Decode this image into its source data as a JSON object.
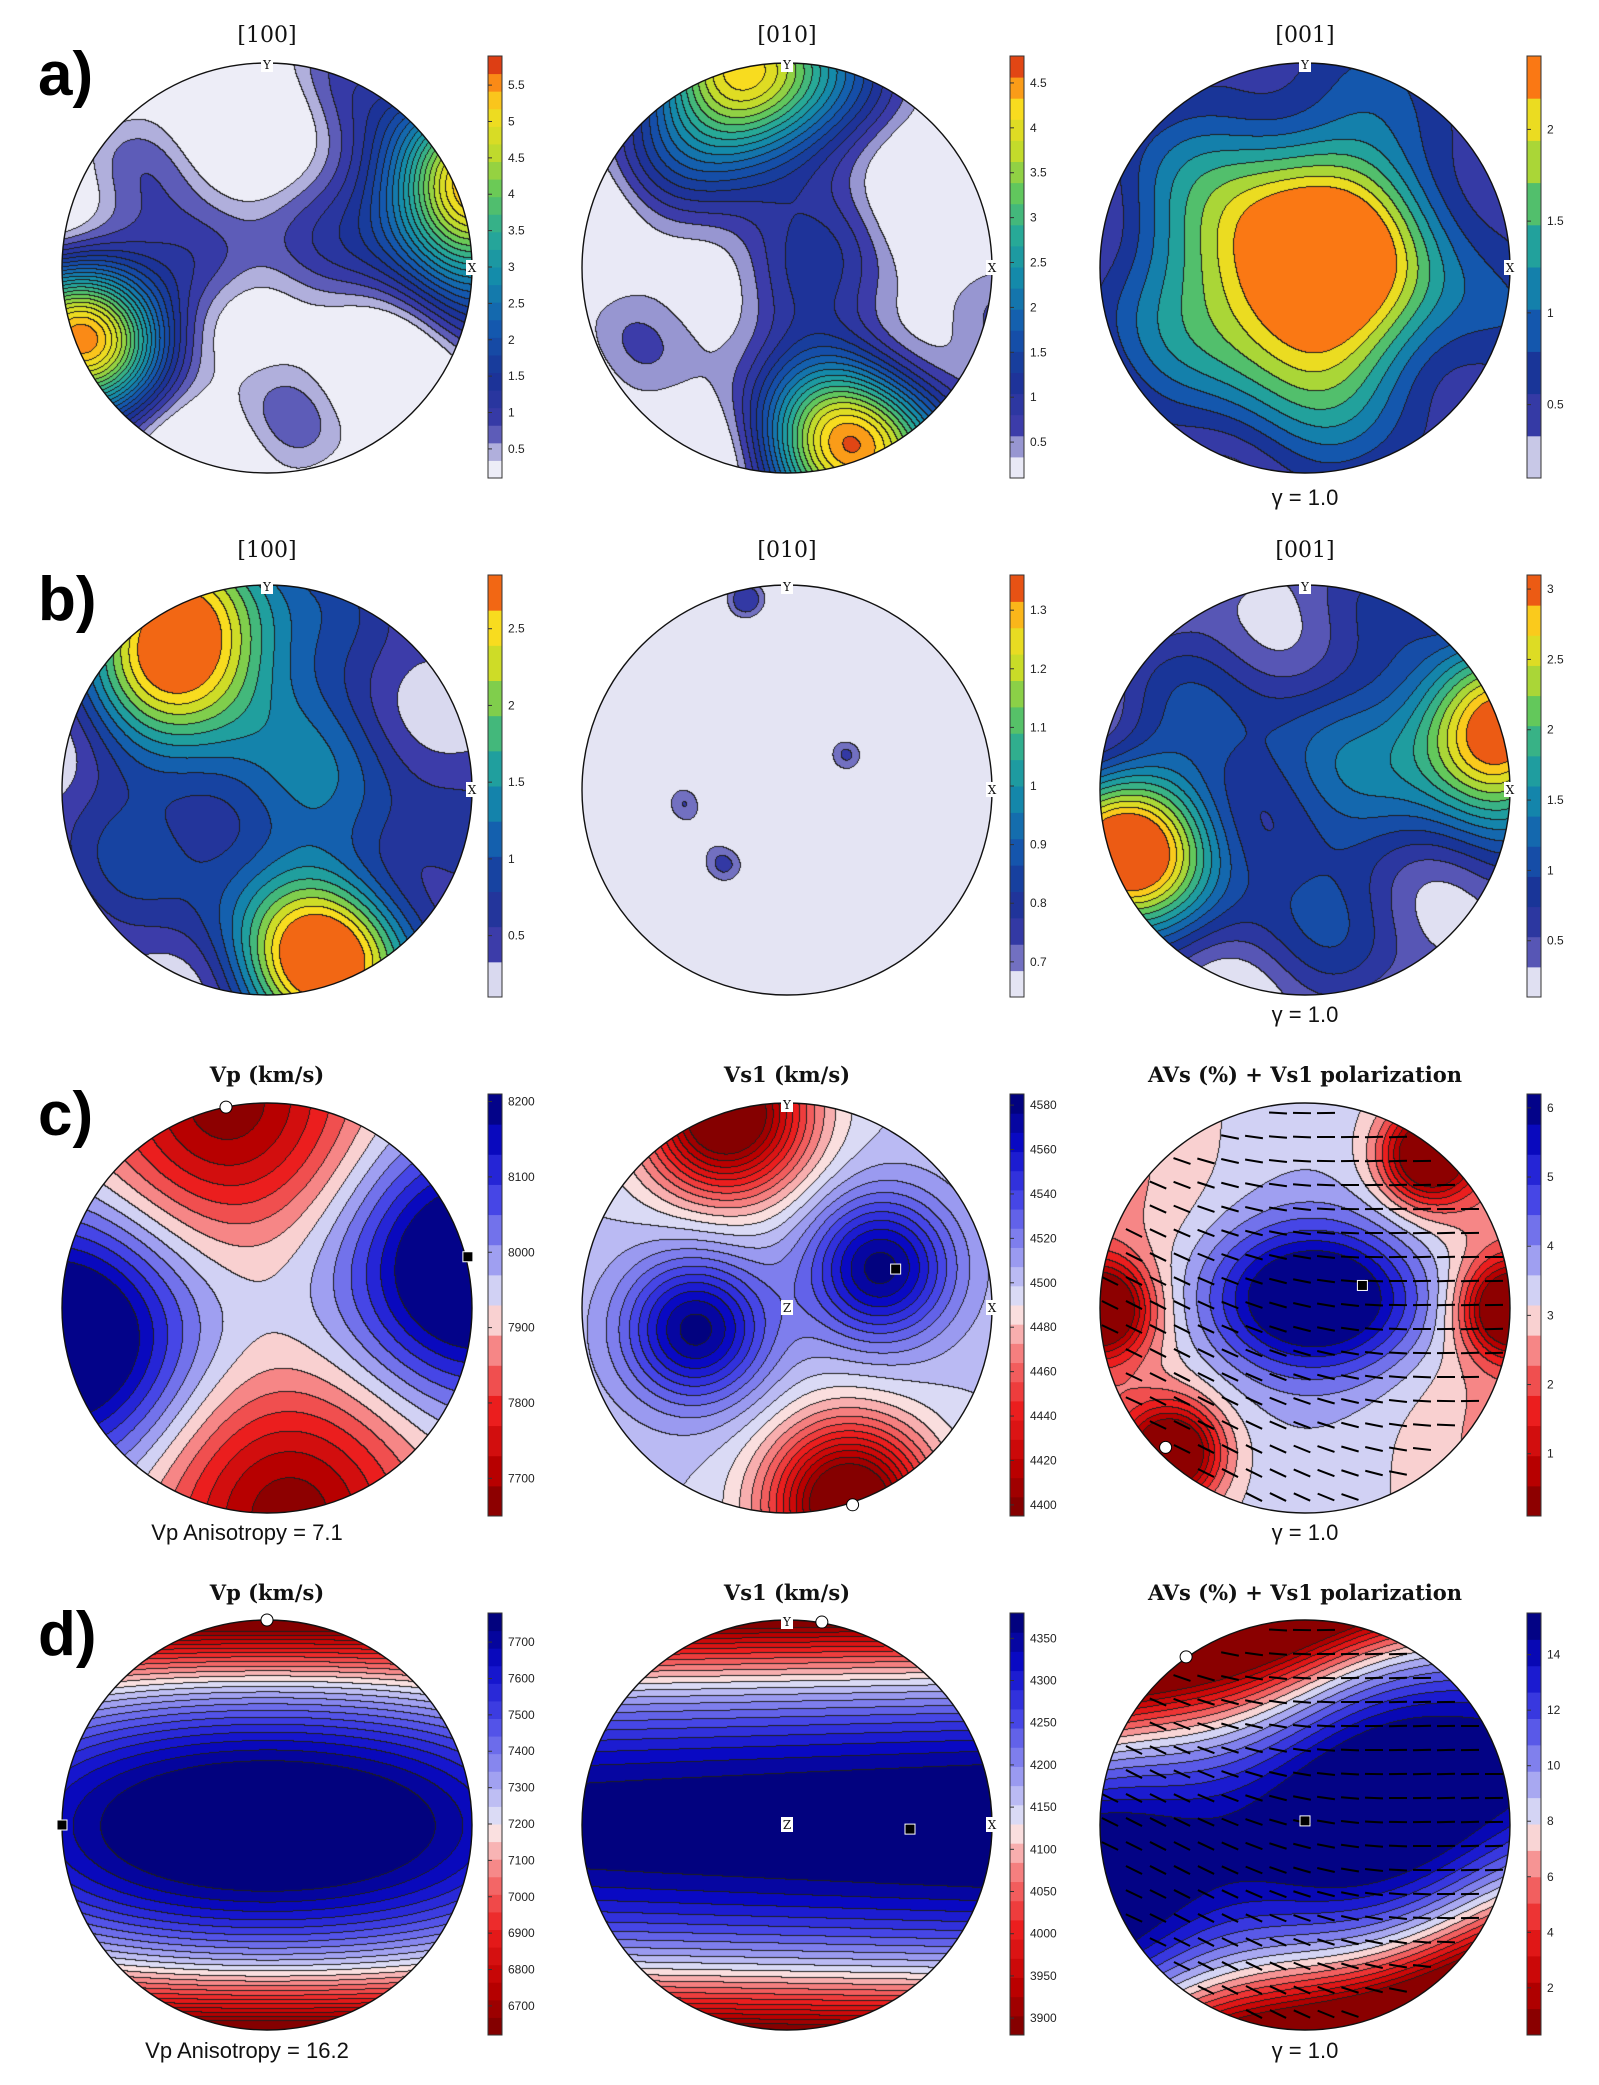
{
  "rows": [
    {
      "letter": "a)",
      "kind": "pole",
      "plots": [
        {
          "title": "[100]",
          "ticks": [
            "0.5",
            "1",
            "1.5",
            "2",
            "2.5",
            "3",
            "3.5",
            "4",
            "4.5",
            "5",
            "5.5"
          ],
          "range": [
            0.1,
            5.9
          ],
          "scale": "parula",
          "blobs": [
            {
              "u": 0.96,
              "v": 0.38,
              "r": 0.45,
              "a": 5.6
            },
            {
              "u": -0.95,
              "v": -0.35,
              "r": 0.4,
              "a": 5.2
            },
            {
              "u": -0.3,
              "v": 0.0,
              "r": 0.3,
              "a": 1.3
            }
          ],
          "axis_marks": [
            {
              "t": "Y",
              "pos": "top"
            },
            {
              "t": "X",
              "pos": "right"
            }
          ],
          "caption": "",
          "markers": []
        },
        {
          "title": "[010]",
          "ticks": [
            "0.5",
            "1",
            "1.5",
            "2",
            "2.5",
            "3",
            "3.5",
            "4",
            "4.5"
          ],
          "range": [
            0.1,
            4.8
          ],
          "scale": "parula",
          "blobs": [
            {
              "u": -0.2,
              "v": 0.92,
              "r": 0.45,
              "a": 4.5
            },
            {
              "u": 0.35,
              "v": -0.88,
              "r": 0.45,
              "a": 4.3
            },
            {
              "u": -0.05,
              "v": -0.1,
              "r": 0.35,
              "a": 1.0
            }
          ],
          "axis_marks": [
            {
              "t": "Y",
              "pos": "top"
            },
            {
              "t": "X",
              "pos": "right"
            }
          ],
          "caption": "",
          "markers": []
        },
        {
          "title": "[001]",
          "ticks": [
            "0.5",
            "1",
            "1.5",
            "2"
          ],
          "range": [
            0.1,
            2.4
          ],
          "scale": "parula",
          "blobs": [
            {
              "u": 0.0,
              "v": 0.0,
              "r": 0.6,
              "a": 2.2
            },
            {
              "u": 0.0,
              "v": 0.0,
              "r": 1.2,
              "a": 0.8
            }
          ],
          "axis_marks": [
            {
              "t": "Y",
              "pos": "top"
            },
            {
              "t": "X",
              "pos": "right"
            }
          ],
          "caption": "γ = 1.0",
          "markers": []
        }
      ]
    },
    {
      "letter": "b)",
      "kind": "pole",
      "plots": [
        {
          "title": "[100]",
          "ticks": [
            "0.5",
            "1",
            "1.5",
            "2",
            "2.5"
          ],
          "range": [
            0.1,
            2.85
          ],
          "scale": "parula",
          "blobs": [
            {
              "u": -0.4,
              "v": 0.78,
              "r": 0.45,
              "a": 2.7
            },
            {
              "u": 0.3,
              "v": -0.85,
              "r": 0.4,
              "a": 2.6
            },
            {
              "u": 0.0,
              "v": 0.0,
              "r": 1.0,
              "a": 1.0
            }
          ],
          "axis_marks": [
            {
              "t": "Y",
              "pos": "top"
            },
            {
              "t": "X",
              "pos": "right"
            }
          ],
          "caption": "",
          "markers": []
        },
        {
          "title": "[010]",
          "ticks": [
            "0.7",
            "0.8",
            "0.9",
            "1",
            "1.1",
            "1.2",
            "1.3"
          ],
          "range": [
            0.64,
            1.36
          ],
          "scale": "parula",
          "blobs": [
            {
              "u": -0.2,
              "v": 0.92,
              "r": 0.2,
              "a": 0.5
            },
            {
              "u": 0.3,
              "v": 0.2,
              "r": 0.18,
              "a": 0.45
            },
            {
              "u": -0.3,
              "v": -0.35,
              "r": 0.2,
              "a": 0.45
            },
            {
              "u": -0.5,
              "v": -0.05,
              "r": 0.18,
              "a": 0.42
            },
            {
              "u": 0.25,
              "v": -0.55,
              "r": 0.18,
              "a": 0.3
            },
            {
              "u": 0.4,
              "v": 0.4,
              "r": 0.3,
              "a": -0.2
            }
          ],
          "axis_marks": [
            {
              "t": "Y",
              "pos": "top"
            },
            {
              "t": "X",
              "pos": "right"
            }
          ],
          "caption": "",
          "markers": []
        },
        {
          "title": "[001]",
          "ticks": [
            "0.5",
            "1",
            "1.5",
            "2",
            "2.5",
            "3"
          ],
          "range": [
            0.1,
            3.1
          ],
          "scale": "parula",
          "blobs": [
            {
              "u": 0.92,
              "v": 0.3,
              "r": 0.4,
              "a": 3.0
            },
            {
              "u": -0.92,
              "v": -0.3,
              "r": 0.4,
              "a": 2.9
            },
            {
              "u": 0.0,
              "v": 0.0,
              "r": 1.0,
              "a": 1.0
            }
          ],
          "axis_marks": [
            {
              "t": "Y",
              "pos": "top"
            },
            {
              "t": "X",
              "pos": "right"
            }
          ],
          "caption": "γ = 1.0",
          "markers": []
        }
      ]
    },
    {
      "letter": "c)",
      "kind": "seismic",
      "plots": [
        {
          "title": "Vp (km/s)",
          "ticks": [
            "7700",
            "7800",
            "7900",
            "8000",
            "8100",
            "8200"
          ],
          "range": [
            7650,
            8210
          ],
          "scale": "redblue",
          "field": "vp_c",
          "axis_marks": [],
          "caption": "Vp Anisotropy = 7.1",
          "markers": [
            {
              "type": "max",
              "u": 0.98,
              "v": 0.25
            },
            {
              "type": "min",
              "u": -0.2,
              "v": 0.98
            }
          ],
          "lines": false
        },
        {
          "title": "Vs1 (km/s)",
          "ticks": [
            "4400",
            "4420",
            "4440",
            "4460",
            "4480",
            "4500",
            "4520",
            "4540",
            "4560",
            "4580"
          ],
          "range": [
            4395,
            4585
          ],
          "scale": "redblue",
          "field": "vs_c",
          "axis_marks": [
            {
              "t": "Y",
              "pos": "top"
            },
            {
              "t": "X",
              "pos": "right"
            },
            {
              "t": "Z",
              "pos": "center"
            }
          ],
          "caption": "",
          "markers": [
            {
              "type": "max",
              "u": 0.53,
              "v": 0.19
            },
            {
              "type": "min",
              "u": 0.32,
              "v": -0.96
            }
          ],
          "lines": false
        },
        {
          "title": "AVs (%) + Vs1 polarization",
          "ticks": [
            "1",
            "2",
            "3",
            "4",
            "5",
            "6"
          ],
          "range": [
            0.1,
            6.2
          ],
          "scale": "redblue",
          "field": "av_c",
          "axis_marks": [],
          "caption": "γ = 1.0",
          "markers": [
            {
              "type": "max",
              "u": 0.28,
              "v": 0.11
            },
            {
              "type": "min",
              "u": -0.68,
              "v": -0.68
            }
          ],
          "lines": true
        }
      ]
    },
    {
      "letter": "d)",
      "kind": "seismic",
      "plots": [
        {
          "title": "Vp (km/s)",
          "ticks": [
            "6700",
            "6800",
            "6900",
            "7000",
            "7100",
            "7200",
            "7300",
            "7400",
            "7500",
            "7600",
            "7700"
          ],
          "range": [
            6620,
            7780
          ],
          "scale": "redblue",
          "field": "vp_d",
          "axis_marks": [],
          "caption": "Vp Anisotropy = 16.2",
          "markers": [
            {
              "type": "max",
              "u": -1.0,
              "v": 0.0
            },
            {
              "type": "min",
              "u": 0.0,
              "v": 1.0
            }
          ],
          "lines": false
        },
        {
          "title": "Vs1 (km/s)",
          "ticks": [
            "3900",
            "3950",
            "4000",
            "4050",
            "4100",
            "4150",
            "4200",
            "4250",
            "4300",
            "4350"
          ],
          "range": [
            3880,
            4380
          ],
          "scale": "redblue",
          "field": "vs_d",
          "axis_marks": [
            {
              "t": "Y",
              "pos": "top"
            },
            {
              "t": "X",
              "pos": "right"
            },
            {
              "t": "Z",
              "pos": "center"
            }
          ],
          "caption": "",
          "markers": [
            {
              "type": "max",
              "u": 0.6,
              "v": -0.02
            },
            {
              "type": "min",
              "u": 0.17,
              "v": 0.99
            }
          ],
          "lines": false
        },
        {
          "title": "AVs (%) + Vs1 polarization",
          "ticks": [
            "2",
            "4",
            "6",
            "8",
            "10",
            "12",
            "14"
          ],
          "range": [
            0.3,
            15.5
          ],
          "scale": "redblue",
          "field": "av_d",
          "axis_marks": [],
          "caption": "γ = 1.0",
          "markers": [
            {
              "type": "max",
              "u": 0.0,
              "v": 0.02
            },
            {
              "type": "min",
              "u": -0.58,
              "v": 0.82
            }
          ],
          "lines": true
        }
      ]
    }
  ]
}
